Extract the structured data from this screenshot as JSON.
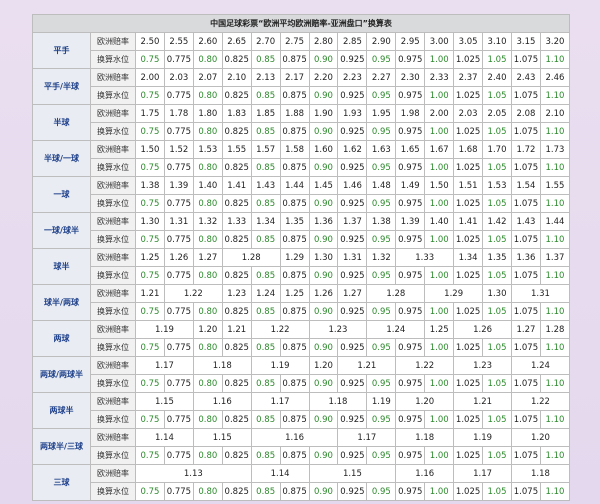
{
  "table": {
    "title": "中国足球彩票“欧洲平均欧洲赔率-亚洲盘口”换算表",
    "row_labels": [
      "欧洲赔率",
      "换算水位"
    ],
    "groups": [
      {
        "label": "平手",
        "odds": [
          "2.50",
          "2.55",
          "2.60",
          "2.65",
          "2.70",
          "2.75",
          "2.80",
          "2.85",
          "2.90",
          "2.95",
          "3.00",
          "3.05",
          "3.10",
          "3.15",
          "3.20"
        ],
        "water": [
          "0.75",
          "0.775",
          "0.80",
          "0.825",
          "0.85",
          "0.875",
          "0.90",
          "0.925",
          "0.95",
          "0.975",
          "1.00",
          "1.025",
          "1.05",
          "1.075",
          "1.10"
        ]
      },
      {
        "label": "平手/半球",
        "odds": [
          "2.00",
          "2.03",
          "2.07",
          "2.10",
          "2.13",
          "2.17",
          "2.20",
          "2.23",
          "2.27",
          "2.30",
          "2.33",
          "2.37",
          "2.40",
          "2.43",
          "2.46"
        ],
        "water": [
          "0.75",
          "0.775",
          "0.80",
          "0.825",
          "0.85",
          "0.875",
          "0.90",
          "0.925",
          "0.95",
          "0.975",
          "1.00",
          "1.025",
          "1.05",
          "1.075",
          "1.10"
        ]
      },
      {
        "label": "半球",
        "odds": [
          "1.75",
          "1.78",
          "1.80",
          "1.83",
          "1.85",
          "1.88",
          "1.90",
          "1.93",
          "1.95",
          "1.98",
          "2.00",
          "2.03",
          "2.05",
          "2.08",
          "2.10"
        ],
        "water": [
          "0.75",
          "0.775",
          "0.80",
          "0.825",
          "0.85",
          "0.875",
          "0.90",
          "0.925",
          "0.95",
          "0.975",
          "1.00",
          "1.025",
          "1.05",
          "1.075",
          "1.10"
        ]
      },
      {
        "label": "半球/一球",
        "odds": [
          "1.50",
          "1.52",
          "1.53",
          "1.55",
          "1.57",
          "1.58",
          "1.60",
          "1.62",
          "1.63",
          "1.65",
          "1.67",
          "1.68",
          "1.70",
          "1.72",
          "1.73"
        ],
        "water": [
          "0.75",
          "0.775",
          "0.80",
          "0.825",
          "0.85",
          "0.875",
          "0.90",
          "0.925",
          "0.95",
          "0.975",
          "1.00",
          "1.025",
          "1.05",
          "1.075",
          "1.10"
        ]
      },
      {
        "label": "一球",
        "odds": [
          "1.38",
          "1.39",
          "1.40",
          "1.41",
          "1.43",
          "1.44",
          "1.45",
          "1.46",
          "1.48",
          "1.49",
          "1.50",
          "1.51",
          "1.53",
          "1.54",
          "1.55"
        ],
        "water": [
          "0.75",
          "0.775",
          "0.80",
          "0.825",
          "0.85",
          "0.875",
          "0.90",
          "0.925",
          "0.95",
          "0.975",
          "1.00",
          "1.025",
          "1.05",
          "1.075",
          "1.10"
        ]
      },
      {
        "label": "一球/球半",
        "odds": [
          "1.30",
          "1.31",
          "1.32",
          "1.33",
          "1.34",
          "1.35",
          "1.36",
          "1.37",
          "1.38",
          "1.39",
          "1.40",
          "1.41",
          "1.42",
          "1.43",
          "1.44"
        ],
        "water": [
          "0.75",
          "0.775",
          "0.80",
          "0.825",
          "0.85",
          "0.875",
          "0.90",
          "0.925",
          "0.95",
          "0.975",
          "1.00",
          "1.025",
          "1.05",
          "1.075",
          "1.10"
        ]
      },
      {
        "label": "球半",
        "odds": [
          "1.25",
          "1.26",
          "1.27",
          "1.28",
          null,
          "1.29",
          "1.30",
          "1.31",
          "1.32",
          "1.33",
          null,
          "1.34",
          "1.35",
          "1.36",
          "1.37"
        ],
        "water": [
          "0.75",
          "0.775",
          "0.80",
          "0.825",
          "0.85",
          "0.875",
          "0.90",
          "0.925",
          "0.95",
          "0.975",
          "1.00",
          "1.025",
          "1.05",
          "1.075",
          "1.10"
        ]
      },
      {
        "label": "球半/两球",
        "odds": [
          "1.21",
          "1.22",
          null,
          "1.23",
          "1.24",
          "1.25",
          "1.26",
          "1.27",
          "1.28",
          null,
          "1.29",
          null,
          "1.30",
          "1.31",
          null
        ],
        "water": [
          "0.75",
          "0.775",
          "0.80",
          "0.825",
          "0.85",
          "0.875",
          "0.90",
          "0.925",
          "0.95",
          "0.975",
          "1.00",
          "1.025",
          "1.05",
          "1.075",
          "1.10"
        ]
      },
      {
        "label": "两球",
        "odds": [
          "1.19",
          null,
          "1.20",
          "1.21",
          "1.22",
          null,
          "1.23",
          null,
          "1.24",
          null,
          "1.25",
          "1.26",
          null,
          "1.27",
          "1.28"
        ],
        "water": [
          "0.75",
          "0.775",
          "0.80",
          "0.825",
          "0.85",
          "0.875",
          "0.90",
          "0.925",
          "0.95",
          "0.975",
          "1.00",
          "1.025",
          "1.05",
          "1.075",
          "1.10"
        ]
      },
      {
        "label": "两球/两球半",
        "odds": [
          "1.17",
          null,
          "1.18",
          null,
          "1.19",
          null,
          "1.20",
          "1.21",
          null,
          "1.22",
          null,
          "1.23",
          null,
          "1.24",
          null
        ],
        "water": [
          "0.75",
          "0.775",
          "0.80",
          "0.825",
          "0.85",
          "0.875",
          "0.90",
          "0.925",
          "0.95",
          "0.975",
          "1.00",
          "1.025",
          "1.05",
          "1.075",
          "1.10"
        ]
      },
      {
        "label": "两球半",
        "odds": [
          "1.15",
          null,
          "1.16",
          null,
          "1.17",
          null,
          "1.18",
          null,
          "1.19",
          "1.20",
          null,
          "1.21",
          null,
          "1.22",
          null
        ],
        "water": [
          "0.75",
          "0.775",
          "0.80",
          "0.825",
          "0.85",
          "0.875",
          "0.90",
          "0.925",
          "0.95",
          "0.975",
          "1.00",
          "1.025",
          "1.05",
          "1.075",
          "1.10"
        ]
      },
      {
        "label": "两球半/三球",
        "odds": [
          "1.14",
          null,
          "1.15",
          null,
          "1.16",
          null,
          null,
          "1.17",
          null,
          "1.18",
          null,
          "1.19",
          null,
          "1.20",
          null
        ],
        "water": [
          "0.75",
          "0.775",
          "0.80",
          "0.825",
          "0.85",
          "0.875",
          "0.90",
          "0.925",
          "0.95",
          "0.975",
          "1.00",
          "1.025",
          "1.05",
          "1.075",
          "1.10"
        ]
      },
      {
        "label": "三球",
        "odds": [
          "1.13",
          null,
          null,
          null,
          "1.14",
          null,
          "1.15",
          null,
          null,
          "1.16",
          null,
          "1.17",
          null,
          "1.18",
          null
        ],
        "water": [
          "0.75",
          "0.775",
          "0.80",
          "0.825",
          "0.85",
          "0.875",
          "0.90",
          "0.925",
          "0.95",
          "0.975",
          "1.00",
          "1.025",
          "1.05",
          "1.075",
          "1.10"
        ]
      }
    ]
  }
}
